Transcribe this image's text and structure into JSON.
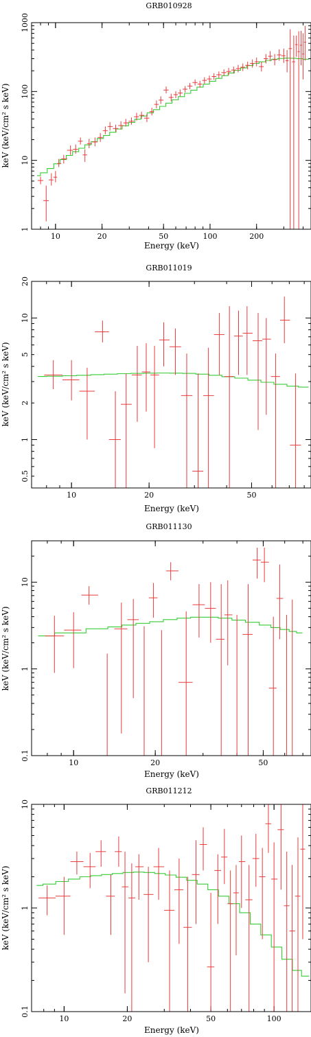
{
  "chart_data": [
    {
      "type": "scatter",
      "title": "GRB010928",
      "xlabel": "Energy (keV)",
      "ylabel": "keV (keV/cm² s keV)",
      "xscale": "log",
      "yscale": "log",
      "xlim": [
        7,
        450
      ],
      "ylim": [
        1,
        1000
      ],
      "xticks": [
        10,
        20,
        50,
        100,
        200
      ],
      "xtick_labels": [
        "10",
        "20",
        "50",
        "100",
        "200"
      ],
      "yticks": [
        1,
        10,
        100,
        1000
      ],
      "ytick_labels": [
        "1",
        "10",
        "100",
        "1000"
      ],
      "grid": false,
      "colors": {
        "data": "#e83a3a",
        "model": "#33cc33"
      },
      "data": [
        [
          8,
          5.1,
          4.5,
          5.8
        ],
        [
          8.7,
          2.6,
          1.3,
          4.3
        ],
        [
          9.4,
          5.2,
          4.3,
          6.5
        ],
        [
          10,
          5.7,
          4.8,
          7
        ],
        [
          10.5,
          9,
          8,
          10.5
        ],
        [
          11.3,
          10.5,
          9,
          12
        ],
        [
          12.5,
          14,
          12,
          16.5
        ],
        [
          13.5,
          14.5,
          12.5,
          17
        ],
        [
          14.5,
          19,
          17,
          21.5
        ],
        [
          15.5,
          12,
          9.5,
          14.5
        ],
        [
          16.5,
          17.5,
          15,
          20.5
        ],
        [
          18,
          18.5,
          16,
          21.5
        ],
        [
          19.5,
          21.5,
          18.5,
          25
        ],
        [
          21,
          27,
          24,
          31
        ],
        [
          22.5,
          31,
          27,
          36
        ],
        [
          24.5,
          29,
          26,
          33
        ],
        [
          26.5,
          32,
          28,
          37
        ],
        [
          28.5,
          35,
          31,
          40
        ],
        [
          31,
          37,
          33,
          42
        ],
        [
          33.5,
          43,
          38,
          49
        ],
        [
          36,
          45,
          40,
          51
        ],
        [
          39,
          41,
          36,
          47
        ],
        [
          42,
          51,
          45,
          58
        ],
        [
          45,
          65,
          57,
          74
        ],
        [
          48,
          75,
          66,
          85
        ],
        [
          52,
          105,
          94,
          118
        ],
        [
          56,
          82,
          72,
          93
        ],
        [
          60,
          90,
          80,
          101
        ],
        [
          64,
          95,
          85,
          107
        ],
        [
          69,
          108,
          97,
          120
        ],
        [
          74,
          120,
          108,
          133
        ],
        [
          80,
          135,
          122,
          150
        ],
        [
          86,
          128,
          114,
          143
        ],
        [
          92,
          145,
          130,
          161
        ],
        [
          99,
          152,
          136,
          170
        ],
        [
          106,
          165,
          148,
          184
        ],
        [
          114,
          175,
          157,
          195
        ],
        [
          123,
          188,
          168,
          210
        ],
        [
          132,
          195,
          173,
          220
        ],
        [
          142,
          205,
          182,
          230
        ],
        [
          152,
          215,
          190,
          243
        ],
        [
          163,
          225,
          198,
          255
        ],
        [
          175,
          240,
          210,
          272
        ],
        [
          188,
          255,
          222,
          292
        ],
        [
          200,
          270,
          232,
          312
        ],
        [
          215,
          230,
          195,
          270
        ],
        [
          230,
          300,
          255,
          350
        ],
        [
          245,
          325,
          275,
          385
        ],
        [
          262,
          290,
          240,
          350
        ],
        [
          280,
          340,
          280,
          410
        ],
        [
          300,
          330,
          260,
          420
        ],
        [
          315,
          280,
          190,
          400
        ],
        [
          330,
          420,
          1,
          800
        ],
        [
          348,
          270,
          1,
          650
        ],
        [
          362,
          480,
          320,
          650
        ],
        [
          375,
          380,
          1,
          750
        ],
        [
          388,
          470,
          240,
          760
        ],
        [
          400,
          350,
          150,
          700
        ],
        [
          412,
          520,
          280,
          900
        ]
      ],
      "model": [
        [
          7.6,
          6
        ],
        [
          8.4,
          6.6
        ],
        [
          9.3,
          7.6
        ],
        [
          10.2,
          8.9
        ],
        [
          11.2,
          10.3
        ],
        [
          12.3,
          11.8
        ],
        [
          13.5,
          13.4
        ],
        [
          14.8,
          15
        ],
        [
          16.2,
          16.8
        ],
        [
          17.8,
          18.7
        ],
        [
          19.5,
          20.8
        ],
        [
          21.4,
          23
        ],
        [
          23.5,
          25.6
        ],
        [
          25.8,
          28.5
        ],
        [
          28.3,
          31.8
        ],
        [
          31.1,
          35.5
        ],
        [
          34.1,
          39.6
        ],
        [
          37.4,
          44
        ],
        [
          41,
          49
        ],
        [
          45,
          54.5
        ],
        [
          49.4,
          60.8
        ],
        [
          54.2,
          67.8
        ],
        [
          59.5,
          75.6
        ],
        [
          65.3,
          84.3
        ],
        [
          71.6,
          94
        ],
        [
          78.6,
          104.5
        ],
        [
          86.2,
          116
        ],
        [
          94.6,
          128
        ],
        [
          103.8,
          141
        ],
        [
          113.9,
          155
        ],
        [
          125,
          170
        ],
        [
          137.2,
          186
        ],
        [
          150.5,
          203
        ],
        [
          165,
          220
        ],
        [
          181,
          238
        ],
        [
          198.5,
          255
        ],
        [
          217.8,
          270
        ],
        [
          239,
          283
        ],
        [
          262,
          294
        ],
        [
          287.5,
          302
        ],
        [
          315.5,
          305
        ],
        [
          346,
          304
        ],
        [
          380,
          300
        ],
        [
          417,
          294
        ]
      ]
    },
    {
      "type": "scatter",
      "title": "GRB011019",
      "xlabel": "Energy (keV)",
      "ylabel": "keV (keV/cm² s keV)",
      "xscale": "log",
      "yscale": "log",
      "xlim": [
        7,
        85
      ],
      "ylim": [
        0.4,
        20
      ],
      "xticks": [
        10,
        20,
        50
      ],
      "xtick_labels": [
        "10",
        "20",
        "50"
      ],
      "yticks": [
        0.5,
        1,
        2,
        5,
        10,
        20
      ],
      "ytick_labels": [
        "0.5",
        "1",
        "2",
        "5",
        "10",
        "20"
      ],
      "grid": false,
      "colors": {
        "data": "#e83a3a",
        "model": "#33cc33"
      },
      "data": [
        [
          8.5,
          3.4,
          2.6,
          4.5
        ],
        [
          10,
          3.1,
          2.1,
          4.5
        ],
        [
          11.5,
          2.5,
          1,
          3.9
        ],
        [
          13.2,
          7.7,
          6.3,
          9.5
        ],
        [
          14.8,
          1,
          0.4,
          2.5
        ],
        [
          16.3,
          1.95,
          0.4,
          3.5
        ],
        [
          18,
          3.4,
          1.4,
          5.9
        ],
        [
          19.5,
          3.6,
          1.7,
          6.2
        ],
        [
          21,
          3.4,
          0.85,
          5.9
        ],
        [
          22.8,
          6.6,
          4,
          9.2
        ],
        [
          25.3,
          5.8,
          3.4,
          8.2
        ],
        [
          28,
          2.3,
          0.4,
          5.1
        ],
        [
          31,
          0.55,
          0.4,
          3.5
        ],
        [
          34,
          2.3,
          0.4,
          5.7
        ],
        [
          37.5,
          7.3,
          3.4,
          11
        ],
        [
          41,
          3.3,
          0.4,
          12.5
        ],
        [
          44.5,
          7.1,
          3.4,
          11.5
        ],
        [
          48,
          7.5,
          3.4,
          12.5
        ],
        [
          53,
          6.5,
          1.2,
          11
        ],
        [
          57,
          6.7,
          1.6,
          10
        ],
        [
          62,
          3.3,
          0.4,
          5.1
        ],
        [
          67,
          9.6,
          6.2,
          15
        ],
        [
          74,
          0.9,
          0.4,
          3.5
        ]
      ],
      "model": [
        [
          7.4,
          3.3
        ],
        [
          8.7,
          3.32
        ],
        [
          9.8,
          3.35
        ],
        [
          11.2,
          3.38
        ],
        [
          12.6,
          3.42
        ],
        [
          14.2,
          3.45
        ],
        [
          16,
          3.48
        ],
        [
          18,
          3.5
        ],
        [
          20.2,
          3.52
        ],
        [
          22.7,
          3.53
        ],
        [
          25.5,
          3.52
        ],
        [
          28.6,
          3.5
        ],
        [
          32.2,
          3.45
        ],
        [
          36.2,
          3.38
        ],
        [
          40.6,
          3.29
        ],
        [
          45.6,
          3.2
        ],
        [
          51.3,
          3.08
        ],
        [
          57.6,
          2.96
        ],
        [
          64.7,
          2.85
        ],
        [
          72.7,
          2.75
        ],
        [
          79.5,
          2.7
        ]
      ]
    },
    {
      "type": "scatter",
      "title": "GRB011130",
      "xlabel": "Energy (keV)",
      "ylabel": "keV (keV/cm² s keV)",
      "xscale": "log",
      "yscale": "log",
      "xlim": [
        7,
        75
      ],
      "ylim": [
        0.1,
        30
      ],
      "xticks": [
        10,
        20,
        50
      ],
      "xtick_labels": [
        "10",
        "20",
        "50"
      ],
      "yticks": [
        0.1,
        1,
        10
      ],
      "ytick_labels": [
        "0.1",
        "1",
        "10"
      ],
      "grid": false,
      "colors": {
        "data": "#e83a3a",
        "model": "#33cc33"
      },
      "data": [
        [
          8.5,
          2.4,
          0.9,
          4.1
        ],
        [
          10,
          2.8,
          1.02,
          4.5
        ],
        [
          11.4,
          7.1,
          5.5,
          9
        ],
        [
          13.3,
          0.1,
          0.1,
          1.5
        ],
        [
          15,
          2.9,
          0.18,
          5.8
        ],
        [
          16.6,
          3.7,
          0.46,
          6.4
        ],
        [
          18.2,
          0.1,
          0.1,
          3.1
        ],
        [
          19.7,
          6.6,
          3.9,
          9.8
        ],
        [
          21.1,
          0.1,
          0.1,
          2.8
        ],
        [
          22.8,
          13.5,
          10.5,
          17
        ],
        [
          26,
          0.7,
          0.1,
          4.6
        ],
        [
          29,
          5.5,
          2.3,
          9.5
        ],
        [
          32,
          5,
          2,
          10
        ],
        [
          35,
          2.2,
          0.1,
          9.5
        ],
        [
          37,
          4.2,
          1.1,
          10.5
        ],
        [
          40,
          0.1,
          0.1,
          4.2
        ],
        [
          44,
          2.5,
          0.1,
          9.5
        ],
        [
          47.5,
          18,
          11,
          25
        ],
        [
          50.5,
          17,
          10,
          25
        ],
        [
          54.5,
          0.6,
          0.1,
          4
        ],
        [
          57.5,
          6.5,
          2.2,
          16
        ],
        [
          61,
          0.1,
          0.1,
          4.2
        ],
        [
          64,
          0.1,
          0.1,
          6.3
        ]
      ],
      "model": [
        [
          7.4,
          2.4
        ],
        [
          9.8,
          2.6
        ],
        [
          12.6,
          2.9
        ],
        [
          14.2,
          3.05
        ],
        [
          16,
          3.2
        ],
        [
          18,
          3.35
        ],
        [
          20.2,
          3.5
        ],
        [
          22.7,
          3.7
        ],
        [
          25.5,
          3.85
        ],
        [
          28.6,
          3.95
        ],
        [
          32.2,
          3.95
        ],
        [
          36.2,
          3.85
        ],
        [
          40.6,
          3.65
        ],
        [
          45.6,
          3.45
        ],
        [
          51.3,
          3.2
        ],
        [
          55.5,
          3
        ],
        [
          60,
          2.85
        ],
        [
          64.7,
          2.7
        ],
        [
          68,
          2.6
        ]
      ]
    },
    {
      "type": "scatter",
      "title": "GRB011212",
      "xlabel": "Energy (keV)",
      "ylabel": "keV (keV/cm² s keV)",
      "xscale": "log",
      "yscale": "log",
      "xlim": [
        7,
        150
      ],
      "ylim": [
        0.1,
        10
      ],
      "xticks": [
        10,
        20,
        50,
        100
      ],
      "xtick_labels": [
        "10",
        "20",
        "50",
        "100"
      ],
      "yticks": [
        0.1,
        1,
        10
      ],
      "ytick_labels": [
        "0.1",
        "1",
        "10"
      ],
      "grid": false,
      "colors": {
        "data": "#e83a3a",
        "model": "#33cc33"
      },
      "data": [
        [
          8.3,
          1.25,
          0.85,
          1.65
        ],
        [
          10,
          1.3,
          0.55,
          2.0
        ],
        [
          11.5,
          2.8,
          2.1,
          3.5
        ],
        [
          13.3,
          2.5,
          1.55,
          3.4
        ],
        [
          15,
          3.5,
          2.5,
          4.5
        ],
        [
          16.7,
          1.3,
          0.55,
          2.1
        ],
        [
          18.2,
          3.5,
          2.5,
          4.9
        ],
        [
          19.5,
          1.6,
          0.15,
          3.5
        ],
        [
          21,
          1.25,
          0.1,
          2.7
        ],
        [
          22.7,
          2.5,
          1.2,
          3.3
        ],
        [
          25.2,
          1.35,
          0.3,
          2.5
        ],
        [
          28.2,
          2.5,
          1.2,
          3.8
        ],
        [
          31.8,
          0.95,
          0.1,
          2.3
        ],
        [
          35.3,
          1.5,
          0.45,
          3
        ],
        [
          38.8,
          0.65,
          0.1,
          2
        ],
        [
          42.5,
          2.1,
          0.7,
          4.5
        ],
        [
          46,
          4.1,
          2.3,
          6
        ],
        [
          50,
          0.27,
          0.1,
          1.4
        ],
        [
          54,
          2.3,
          0.7,
          3.3
        ],
        [
          58,
          3.1,
          1.7,
          5.8
        ],
        [
          62,
          1.1,
          0.1,
          2.3
        ],
        [
          66,
          1.4,
          0.35,
          2.6
        ],
        [
          70,
          2.8,
          1,
          5
        ],
        [
          76,
          1.2,
          0.1,
          2.6
        ],
        [
          82,
          3,
          1.6,
          5.2
        ],
        [
          88,
          2,
          0.5,
          3.8
        ],
        [
          94,
          6.5,
          3.4,
          10
        ],
        [
          100,
          1.9,
          0.1,
          4.3
        ],
        [
          108,
          5.7,
          1.5,
          10
        ],
        [
          115,
          1.05,
          0.1,
          3.5
        ],
        [
          122,
          0.6,
          0.1,
          2.6
        ],
        [
          130,
          1.3,
          0.1,
          4.8
        ],
        [
          137,
          3.7,
          0.5,
          10
        ]
      ],
      "model": [
        [
          7.4,
          1.65
        ],
        [
          8.5,
          1.7
        ],
        [
          9.8,
          1.8
        ],
        [
          11.2,
          1.9
        ],
        [
          12.6,
          2
        ],
        [
          14.2,
          2.05
        ],
        [
          16,
          2.1
        ],
        [
          18,
          2.15
        ],
        [
          20.2,
          2.2
        ],
        [
          22.7,
          2.22
        ],
        [
          25.5,
          2.2
        ],
        [
          28.6,
          2.15
        ],
        [
          32.2,
          2.08
        ],
        [
          36.2,
          1.98
        ],
        [
          40.6,
          1.85
        ],
        [
          45.6,
          1.7
        ],
        [
          51.3,
          1.5
        ],
        [
          57.6,
          1.3
        ],
        [
          64.7,
          1.1
        ],
        [
          72.7,
          0.9
        ],
        [
          81.6,
          0.7
        ],
        [
          91.6,
          0.55
        ],
        [
          102.8,
          0.42
        ],
        [
          115.4,
          0.32
        ],
        [
          129.6,
          0.25
        ],
        [
          141,
          0.22
        ]
      ]
    }
  ]
}
